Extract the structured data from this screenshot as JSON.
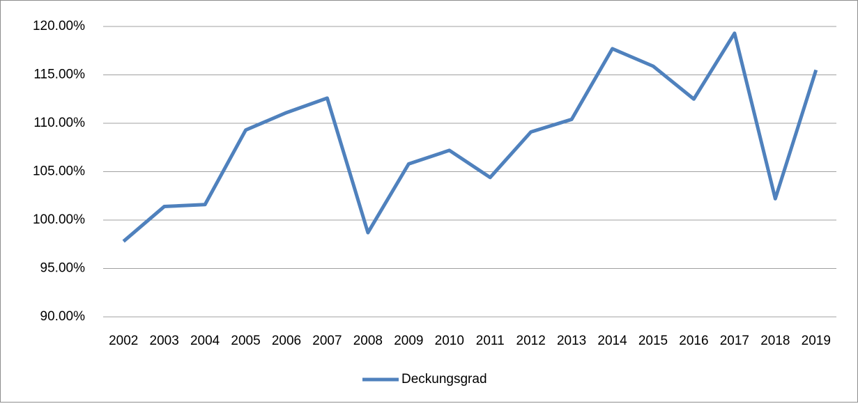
{
  "chart_data": {
    "type": "line",
    "categories": [
      "2002",
      "2003",
      "2004",
      "2005",
      "2006",
      "2007",
      "2008",
      "2009",
      "2010",
      "2011",
      "2012",
      "2013",
      "2014",
      "2015",
      "2016",
      "2017",
      "2018",
      "2019"
    ],
    "series": [
      {
        "name": "Deckungsgrad",
        "color": "#4f81bd",
        "values": [
          97.8,
          101.4,
          101.6,
          109.3,
          111.1,
          112.6,
          98.7,
          105.8,
          107.2,
          104.4,
          109.1,
          110.4,
          117.7,
          115.9,
          112.5,
          119.3,
          102.2,
          115.5
        ]
      }
    ],
    "ylim": [
      90,
      120
    ],
    "yticks": [
      {
        "value": 90,
        "label": "90.00%"
      },
      {
        "value": 95,
        "label": "95.00%"
      },
      {
        "value": 100,
        "label": "100.00%"
      },
      {
        "value": 105,
        "label": "105.00%"
      },
      {
        "value": 110,
        "label": "110.00%"
      },
      {
        "value": 115,
        "label": "115.00%"
      },
      {
        "value": 120,
        "label": "120.00%"
      }
    ],
    "grid": true,
    "legend": "bottom"
  }
}
